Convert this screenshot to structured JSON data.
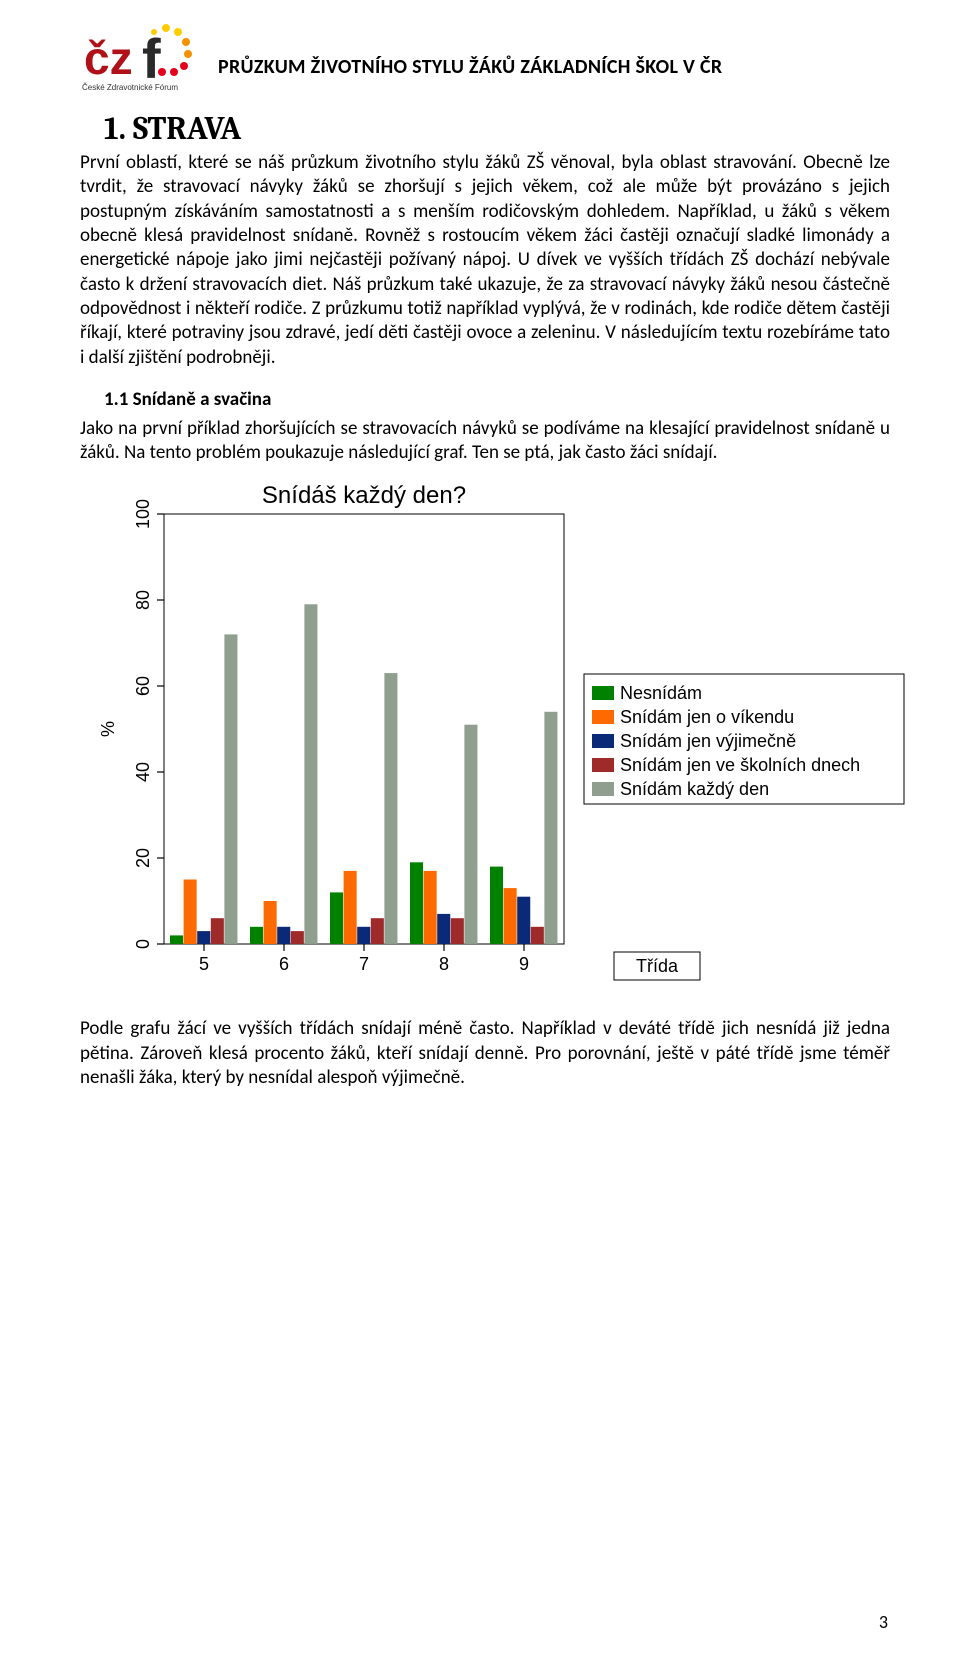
{
  "header": {
    "title": "PRŮZKUM ŽIVOTNÍHO STYLU ŽÁKŮ ZÁKLADNÍCH ŠKOL V ČR",
    "logo_sub": "České Zdravotnické Fórum",
    "logo_c_color": "#b01018",
    "logo_f_color": "#2a2a2a",
    "logo_dot_colors": [
      "#e2001a",
      "#f39200",
      "#ffcc00"
    ]
  },
  "section": {
    "h1": "1. STRAVA",
    "p1": "První oblastí, které se náš průzkum životního stylu žáků ZŠ věnoval, byla oblast stravování. Obecně lze tvrdit, že stravovací návyky žáků se zhoršují s jejich věkem, což ale může být provázáno s jejich postupným získáváním samostatnosti a s menším rodičovským dohledem. Například, u žáků s věkem obecně klesá pravidelnost snídaně. Rovněž s rostoucím věkem žáci častěji označují sladké limonády a energetické nápoje jako jimi nejčastěji požívaný nápoj. U dívek ve vyšších třídách ZŠ dochází nebývale často k držení stravovacích diet. Náš průzkum také ukazuje, že za stravovací návyky žáků nesou částečně odpovědnost i někteří rodiče. Z průzkumu totiž například vyplývá, že v rodinách, kde rodiče dětem častěji říkají, které potraviny jsou zdravé, jedí děti častěji ovoce a zeleninu.  V následujícím textu rozebíráme tato i další zjištění podrobněji.",
    "h3": "1.1 Snídaně a svačina",
    "p2": "Jako na první příklad zhoršujících se stravovacích návyků se podíváme na klesající pravidelnost snídaně u žáků. Na tento problém poukazuje následující graf. Ten se ptá, jak často žáci snídají.",
    "p3": "Podle grafu žácí ve vyšších třídách snídají méně často. Například v deváté třídě jich nesnídá již jedna pětina. Zároveň klesá procento žáků, kteří snídají denně. Pro porovnání, ještě v páté třídě jsme téměř nenašli žáka, který by nesnídal alespoň výjimečně."
  },
  "chart": {
    "type": "grouped-bar",
    "title": "Snídáš každý den?",
    "title_fontsize": 24,
    "y_axis": {
      "label": "%",
      "ticks": [
        0,
        20,
        40,
        60,
        80,
        100
      ],
      "label_fontsize": 18,
      "tick_fontsize": 18
    },
    "x_axis": {
      "ticks": [
        "5",
        "6",
        "7",
        "8",
        "9"
      ],
      "box_label": "Třída",
      "tick_fontsize": 18
    },
    "ylim": [
      0,
      100
    ],
    "legend": {
      "items": [
        {
          "label": "Nesnídám",
          "color": "#008200"
        },
        {
          "label": "Snídám jen o víkendu",
          "color": "#ff6a00"
        },
        {
          "label": "Snídám jen výjimečně",
          "color": "#0a2a78"
        },
        {
          "label": "Snídám jen ve školních dnech",
          "color": "#9e2a2a"
        },
        {
          "label": "Snídám každý den",
          "color": "#8f9e8f"
        }
      ],
      "fontsize": 18
    },
    "series_colors": {
      "nesnidam": "#008200",
      "vikend": "#ff6a00",
      "vyjimecne": "#0a2a78",
      "skolni_dny": "#9e2a2a",
      "kazdy_den": "#8f9e8f"
    },
    "groups": [
      {
        "x": "5",
        "values": {
          "nesnidam": 2,
          "vikend": 15,
          "vyjimecne": 3,
          "skolni_dny": 6,
          "kazdy_den": 72
        }
      },
      {
        "x": "6",
        "values": {
          "nesnidam": 4,
          "vikend": 10,
          "vyjimecne": 4,
          "skolni_dny": 3,
          "kazdy_den": 79
        }
      },
      {
        "x": "7",
        "values": {
          "nesnidam": 12,
          "vikend": 17,
          "vyjimecne": 4,
          "skolni_dny": 6,
          "kazdy_den": 63
        }
      },
      {
        "x": "8",
        "values": {
          "nesnidam": 19,
          "vikend": 17,
          "vyjimecne": 7,
          "skolni_dny": 6,
          "kazdy_den": 51
        }
      },
      {
        "x": "9",
        "values": {
          "nesnidam": 18,
          "vikend": 13,
          "vyjimecne": 11,
          "skolni_dny": 4,
          "kazdy_den": 54
        }
      }
    ],
    "bar_width": 0.17,
    "plot_bg": "#ffffff",
    "axis_stroke": "#000000",
    "box_stroke": "#000000"
  },
  "page_num": "3"
}
